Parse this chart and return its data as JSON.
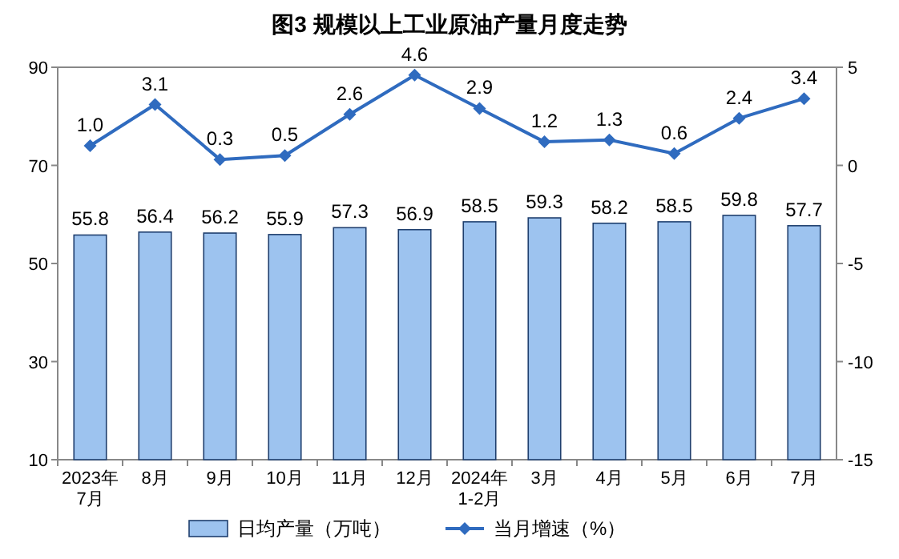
{
  "chart_data": {
    "type": "bar",
    "title": "图3  规模以上工业原油产量月度走势",
    "categories": [
      "2023年\n7月",
      "8月",
      "9月",
      "10月",
      "11月",
      "12月",
      "2024年\n1-2月",
      "3月",
      "4月",
      "5月",
      "6月",
      "7月"
    ],
    "series": [
      {
        "name": "日均产量（万吨）",
        "color": "#9dc3ef",
        "values": [
          55.8,
          56.4,
          56.2,
          55.9,
          57.3,
          56.9,
          58.5,
          59.3,
          58.2,
          58.5,
          59.8,
          57.7
        ],
        "value_labels": [
          "55.8",
          "56.4",
          "56.2",
          "55.9",
          "57.3",
          "56.9",
          "58.5",
          "59.3",
          "58.2",
          "58.5",
          "59.8",
          "57.7"
        ]
      },
      {
        "name": "当月增速（%）",
        "type": "line",
        "axis": "y2",
        "marker": "diamond",
        "color": "#2f6bbf",
        "values": [
          1.0,
          3.1,
          0.3,
          0.5,
          2.6,
          4.6,
          2.9,
          1.2,
          1.3,
          0.6,
          2.4,
          3.4
        ],
        "value_labels": [
          "1.0",
          "3.1",
          "0.3",
          "0.5",
          "2.6",
          "4.6",
          "2.9",
          "1.2",
          "1.3",
          "0.6",
          "2.4",
          "3.4"
        ]
      }
    ],
    "ylim": [
      10,
      90
    ],
    "yticks": [
      10,
      30,
      50,
      70,
      90
    ],
    "y2lim": [
      -15,
      5
    ],
    "y2ticks": [
      5,
      0,
      -5,
      -10,
      -15
    ],
    "legend": "bottom"
  }
}
